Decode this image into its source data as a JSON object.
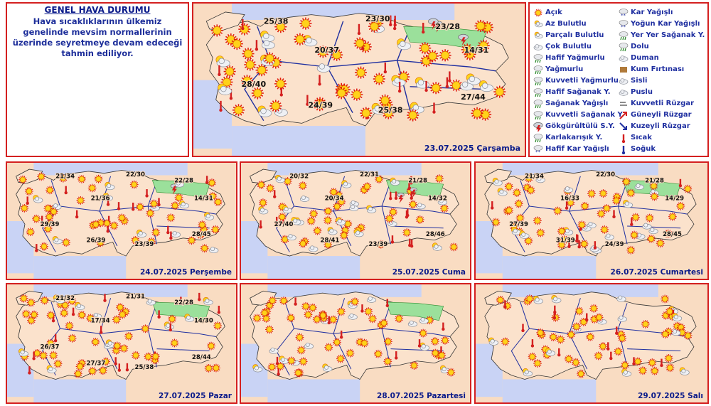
{
  "general": {
    "title": "GENEL HAVA DURUMU",
    "text": "Hava sıcaklıklarının ülkemiz genelinde mevsim normallerinin üzerinde seyretmeye devam edeceği tahmin ediliyor."
  },
  "legend": [
    {
      "label": "Açık",
      "icon": "sun-icon",
      "color": "#f2b800"
    },
    {
      "label": "Az Bulutlu",
      "icon": "sun-small-cloud-icon",
      "color": "#f2b800"
    },
    {
      "label": "Parçalı Bulutlu",
      "icon": "sun-cloud-icon",
      "color": "#f2b800"
    },
    {
      "label": "Çok Bulutlu",
      "icon": "cloud-icon",
      "color": "#9aa0a8"
    },
    {
      "label": "Hafif Yağmurlu",
      "icon": "light-rain-icon",
      "color": "#2e8b2e"
    },
    {
      "label": "Yağmurlu",
      "icon": "rain-icon",
      "color": "#2e8b2e"
    },
    {
      "label": "Kuvvetli Yağmurlu",
      "icon": "heavy-rain-icon",
      "color": "#2e8b2e"
    },
    {
      "label": "Hafif Sağanak Y.",
      "icon": "light-shower-icon",
      "color": "#2e8b2e"
    },
    {
      "label": "Sağanak Yağışlı",
      "icon": "shower-icon",
      "color": "#2e8b2e"
    },
    {
      "label": "Kuvvetli Sağanak Y",
      "icon": "heavy-shower-icon",
      "color": "#2e8b2e"
    },
    {
      "label": "Gökgürültülü S.Y.",
      "icon": "thunderstorm-icon",
      "color": "#d42020"
    },
    {
      "label": "Karlakarışık Y.",
      "icon": "sleet-icon",
      "color": "#2e8b2e"
    },
    {
      "label": "Hafif Kar Yağışlı",
      "icon": "light-snow-icon",
      "color": "#1f2fa0"
    },
    {
      "label": "Kar Yağışlı",
      "icon": "snow-icon",
      "color": "#1f2fa0"
    },
    {
      "label": "Yoğun Kar Yağışlı",
      "icon": "heavy-snow-icon",
      "color": "#1f2fa0"
    },
    {
      "label": "Yer Yer Sağanak Y.",
      "icon": "scattered-shower-icon",
      "color": "#2e8b2e"
    },
    {
      "label": "Dolu",
      "icon": "hail-icon",
      "color": "#2e8b2e"
    },
    {
      "label": "Duman",
      "icon": "smoke-icon",
      "color": "#9aa0a8"
    },
    {
      "label": "Kum Fırtınası",
      "icon": "sandstorm-icon",
      "color": "#b07a3a"
    },
    {
      "label": "Sisli",
      "icon": "fog-icon",
      "color": "#9aa0a8"
    },
    {
      "label": "Puslu",
      "icon": "haze-icon",
      "color": "#9aa0a8"
    },
    {
      "label": "Kuvvetli Rüzgar",
      "icon": "strong-wind-icon",
      "color": "#9aa0a8"
    },
    {
      "label": "Güneyli Rüzgar",
      "icon": "south-wind-arrow-icon",
      "color": "#d42020"
    },
    {
      "label": "Kuzeyli Rüzgar",
      "icon": "north-wind-arrow-icon",
      "color": "#1f2fa0"
    },
    {
      "label": "Sıcak",
      "icon": "hot-thermometer-icon",
      "color": "#d42020"
    },
    {
      "label": "Soğuk",
      "icon": "cold-thermometer-icon",
      "color": "#1f2fa0"
    }
  ],
  "colors": {
    "land": "#f7d0b2",
    "sea": "#c9d3f5",
    "border": "#d42020",
    "rain_area": "#9be09b",
    "text": "#1f2fa0"
  },
  "maps": [
    {
      "date": "23.07.2025 Çarşamba",
      "temps": [
        "25/38",
        "23/30",
        "23/28",
        "20/37",
        "14/31",
        "28/40",
        "27/44",
        "24/39",
        "25/38"
      ],
      "rain_area": true
    },
    {
      "date": "24.07.2025 Perşembe",
      "temps": [
        "21/34",
        "22/30",
        "22/28",
        "21/36",
        "14/31",
        "29/39",
        "28/45",
        "26/39",
        "23/39"
      ],
      "rain_area": true
    },
    {
      "date": "25.07.2025 Cuma",
      "temps": [
        "20/32",
        "22/31",
        "21/28",
        "20/34",
        "14/32",
        "27/40",
        "28/46",
        "28/41",
        "23/39"
      ],
      "rain_area": true
    },
    {
      "date": "26.07.2025 Cumartesi",
      "temps": [
        "21/34",
        "22/30",
        "21/28",
        "16/33",
        "14/29",
        "27/39",
        "28/45",
        "31/39",
        "24/39"
      ],
      "rain_area": true
    },
    {
      "date": "27.07.2025 Pazar",
      "temps": [
        "21/32",
        "21/31",
        "22/28",
        "17/34",
        "14/30",
        "26/37",
        "28/44",
        "27/37",
        "25/38"
      ],
      "rain_area": true
    },
    {
      "date": "28.07.2025 Pazartesi",
      "temps": [],
      "rain_area": true
    },
    {
      "date": "29.07.2025 Salı",
      "temps": [],
      "rain_area": false
    }
  ]
}
